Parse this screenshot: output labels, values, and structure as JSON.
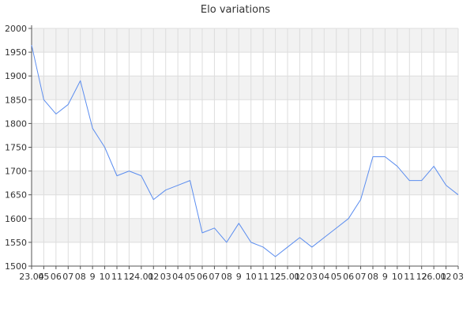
{
  "chart_data": {
    "type": "line",
    "title": "Elo variations",
    "xlabel": "",
    "ylabel": "",
    "ylim": [
      1500,
      2000
    ],
    "yticks": [
      1500,
      1550,
      1600,
      1650,
      1700,
      1750,
      1800,
      1850,
      1900,
      1950,
      2000
    ],
    "x_tick_labels": [
      "23.04",
      "05",
      "06",
      "07",
      "08",
      "9",
      "10",
      "11",
      "12",
      "24.01",
      "02",
      "03",
      "04",
      "05",
      "06",
      "07",
      "08",
      "9",
      "10",
      "11",
      "12",
      "25.01",
      "02",
      "03",
      "04",
      "05",
      "06",
      "07",
      "08",
      "9",
      "10",
      "11",
      "12",
      "26.01",
      "02",
      "03"
    ],
    "grid": true,
    "line_color": "#5b8def",
    "band_color": "#f2f2f2",
    "grid_color": "#dddddd",
    "series": [
      {
        "values": [
          1965,
          1850,
          1820,
          1840,
          1890,
          1790,
          1750,
          1690,
          1700,
          1690,
          1640,
          1660,
          1670,
          1680,
          1570,
          1580,
          1550,
          1590,
          1550,
          1540,
          1520,
          1540,
          1560,
          1540,
          1560,
          1580,
          1600,
          1640,
          1730,
          1730,
          1710,
          1680,
          1680,
          1710,
          1670,
          1650
        ]
      }
    ]
  }
}
